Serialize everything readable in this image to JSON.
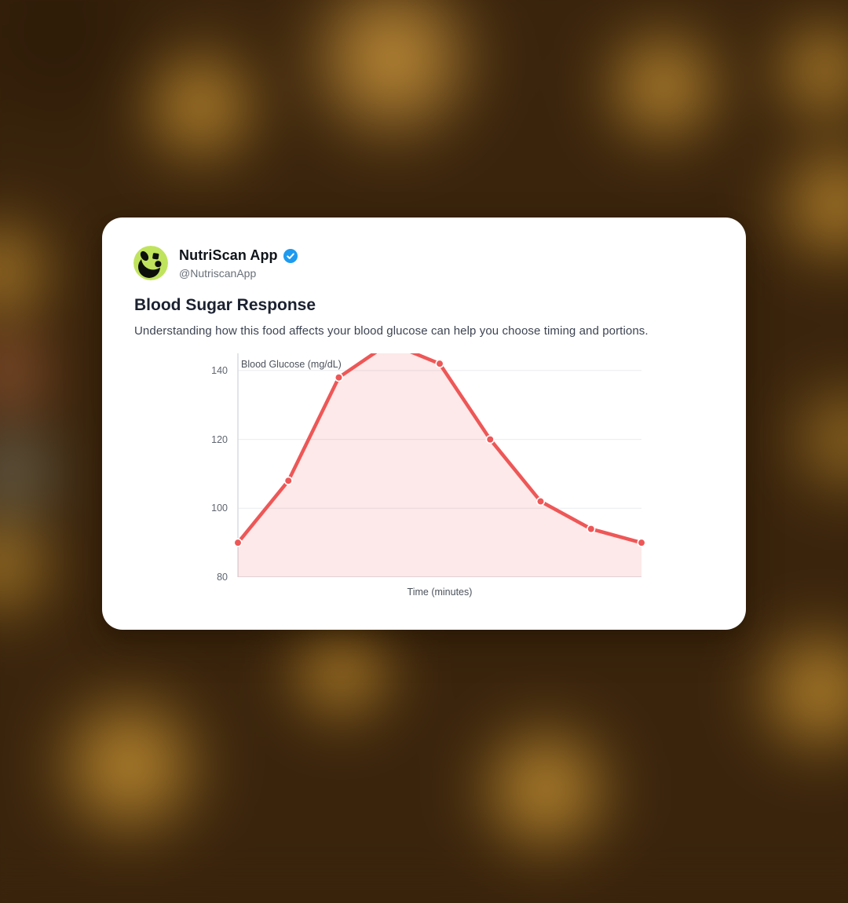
{
  "background": {
    "base_color": "#3a240c",
    "highlight_color": "#d39b35"
  },
  "card": {
    "author": {
      "name": "NutriScan App",
      "handle": "@NutriscanApp",
      "verified": true
    },
    "title": "Blood Sugar Response",
    "description": "Understanding how this food affects your blood glucose can help you choose timing and portions.",
    "colors": {
      "card_bg": "#ffffff",
      "name_text": "#0f1419",
      "handle_text": "#697079",
      "title_text": "#1b2130",
      "body_text": "#3d4452",
      "verified_blue": "#1d9bf0",
      "avatar_green": "#c0e35e",
      "avatar_mark": "#0d0f0a"
    }
  },
  "chart_data": {
    "type": "area",
    "series": [
      {
        "name": "Blood Glucose",
        "x": [
          0,
          15,
          30,
          45,
          60,
          75,
          90,
          105,
          120
        ],
        "values": [
          90,
          108,
          138,
          148,
          142,
          120,
          102,
          94,
          90
        ]
      }
    ],
    "ylabel_inline": "Blood Glucose (mg/dL)",
    "xlabel": "Time (minutes)",
    "yticks": [
      80,
      100,
      120,
      140
    ],
    "ylim": [
      80,
      145
    ],
    "xlim": [
      0,
      120
    ],
    "grid": true,
    "legend": false,
    "peak_clipped_above_plot": true,
    "line_color": "#ee5757",
    "fill_color": "rgba(238,87,87,0.13)",
    "grid_color": "#e9ebee",
    "axis_color": "#d8dbdf",
    "tick_text_color": "#5f6670"
  }
}
